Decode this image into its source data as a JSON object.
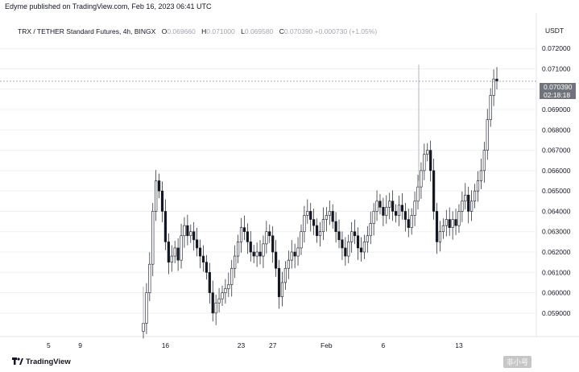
{
  "header": {
    "publish_text": "Edyme published on TradingView.com, Feb 16, 2023 06:41 UTC"
  },
  "legend": {
    "symbol": "TRX / TETHER Standard Futures, 4h, BINGX",
    "o_label": "O",
    "o": "0.069660",
    "h_label": "H",
    "h": "0.071000",
    "l_label": "L",
    "l": "0.069580",
    "c_label": "C",
    "c": "0.070390",
    "change": "+0.000730 (+1.05%)"
  },
  "price_axis": {
    "currency": "USDT"
  },
  "last_price": {
    "price": "0.070390",
    "countdown": "02:18:18"
  },
  "footer": {
    "brand": "TradingView",
    "watermark": "非小号"
  },
  "colors": {
    "candle": "#131722",
    "wick": "#131722",
    "grid": "#eef0f3",
    "price_line": "#787b86",
    "brand": "#131722"
  },
  "chart_data": {
    "type": "candlestick",
    "title": "TRX / TETHER Standard Futures, 4h, BINGX",
    "xlabel": "",
    "ylabel": "",
    "ylim": [
      0.0584,
      0.0728
    ],
    "grid": false,
    "x_ticks": [
      "5",
      "9",
      "16",
      "23",
      "27",
      "Feb",
      "6",
      "13"
    ],
    "y_ticks": [
      "0.059000",
      "0.060000",
      "0.061000",
      "0.062000",
      "0.063000",
      "0.064000",
      "0.065000",
      "0.066000",
      "0.067000",
      "0.068000",
      "0.069000",
      "0.070000",
      "0.071000",
      "0.072000"
    ],
    "series": [
      {
        "name": "TRXUSDT",
        "values": [
          0.0585,
          0.06,
          0.0614,
          0.064,
          0.0655,
          0.065,
          0.064,
          0.0625,
          0.0615,
          0.0618,
          0.0622,
          0.0616,
          0.0628,
          0.0633,
          0.0628,
          0.063,
          0.0626,
          0.0622,
          0.0618,
          0.0615,
          0.061,
          0.06,
          0.059,
          0.0595,
          0.0597,
          0.06,
          0.0602,
          0.0604,
          0.0612,
          0.0618,
          0.0625,
          0.0632,
          0.063,
          0.0625,
          0.062,
          0.0618,
          0.062,
          0.0618,
          0.0624,
          0.063,
          0.0628,
          0.062,
          0.0612,
          0.0598,
          0.0605,
          0.0612,
          0.0616,
          0.062,
          0.0618,
          0.0622,
          0.063,
          0.0638,
          0.064,
          0.0636,
          0.0633,
          0.0628,
          0.063,
          0.0636,
          0.0638,
          0.064,
          0.0635,
          0.063,
          0.0626,
          0.0622,
          0.0618,
          0.0625,
          0.063,
          0.0628,
          0.0622,
          0.062,
          0.0625,
          0.0628,
          0.0634,
          0.064,
          0.0645,
          0.0642,
          0.0638,
          0.0642,
          0.0645,
          0.064,
          0.0638,
          0.0643,
          0.064,
          0.0636,
          0.0632,
          0.0638,
          0.0645,
          0.0652,
          0.066,
          0.0668,
          0.067,
          0.066,
          0.064,
          0.0625,
          0.063,
          0.0633,
          0.0636,
          0.0632,
          0.0636,
          0.0633,
          0.064,
          0.0645,
          0.0648,
          0.064,
          0.0645,
          0.065,
          0.0655,
          0.066,
          0.067,
          0.0685,
          0.0697,
          0.0705,
          0.0704
        ]
      }
    ]
  }
}
